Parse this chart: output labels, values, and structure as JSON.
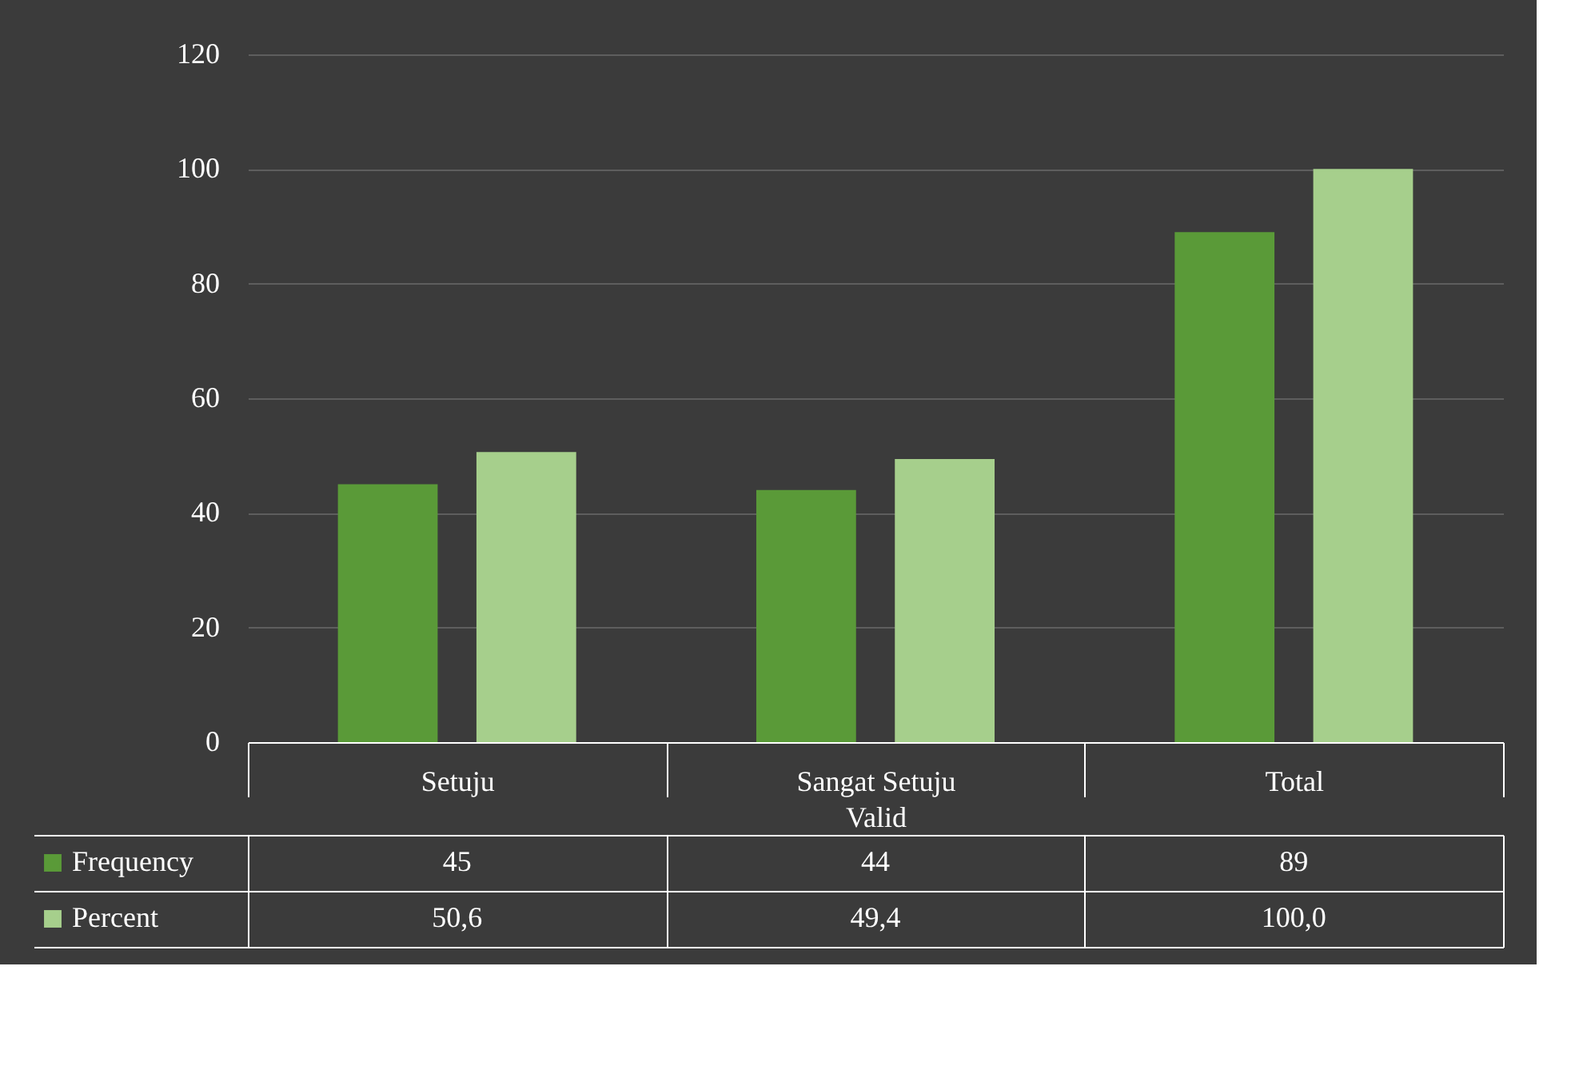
{
  "chart_data": {
    "type": "bar",
    "categories": [
      "Setuju",
      "Sangat Setuju",
      "Total"
    ],
    "xlabel": "Valid",
    "series": [
      {
        "name": "Frequency",
        "color": "#5a9a38",
        "values": [
          45,
          44,
          89
        ],
        "value_labels": [
          "45",
          "44",
          "89"
        ]
      },
      {
        "name": "Percent",
        "color": "#a6cf8c",
        "values": [
          50.6,
          49.4,
          100.0
        ],
        "value_labels": [
          "50,6",
          "49,4",
          "100,0"
        ]
      }
    ],
    "ylim": [
      0,
      120
    ],
    "yticks": [
      0,
      20,
      40,
      60,
      80,
      100,
      120
    ],
    "grid": "y",
    "legend": "bottom left"
  }
}
